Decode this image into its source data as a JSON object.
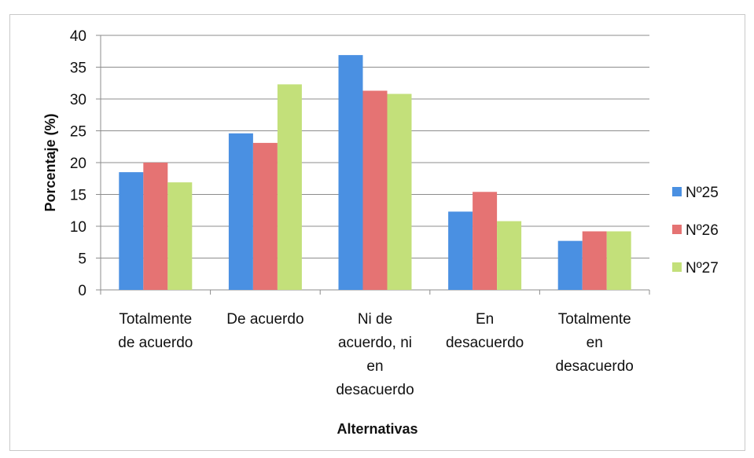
{
  "chart_data": {
    "type": "bar",
    "title": "",
    "xlabel": "Alternativas",
    "ylabel": "Porcentaje (%)",
    "ylim": [
      0,
      40
    ],
    "yticks": [
      0,
      5,
      10,
      15,
      20,
      25,
      30,
      35,
      40
    ],
    "grid": true,
    "legend_position": "right",
    "categories": [
      [
        "Totalmente",
        "de acuerdo"
      ],
      [
        "De acuerdo"
      ],
      [
        "Ni de",
        "acuerdo, ni",
        "en",
        "desacuerdo"
      ],
      [
        "En",
        "desacuerdo"
      ],
      [
        "Totalmente",
        "en",
        "desacuerdo"
      ]
    ],
    "series": [
      {
        "name": "Nº25",
        "color": "#4a90e2",
        "values": [
          18.5,
          24.6,
          36.9,
          12.3,
          7.7
        ]
      },
      {
        "name": "Nº26",
        "color": "#e57373",
        "values": [
          20.0,
          23.1,
          31.3,
          15.4,
          9.2
        ]
      },
      {
        "name": "Nº27",
        "color": "#c3e07a",
        "values": [
          16.9,
          32.3,
          30.8,
          10.8,
          9.2
        ]
      }
    ]
  }
}
